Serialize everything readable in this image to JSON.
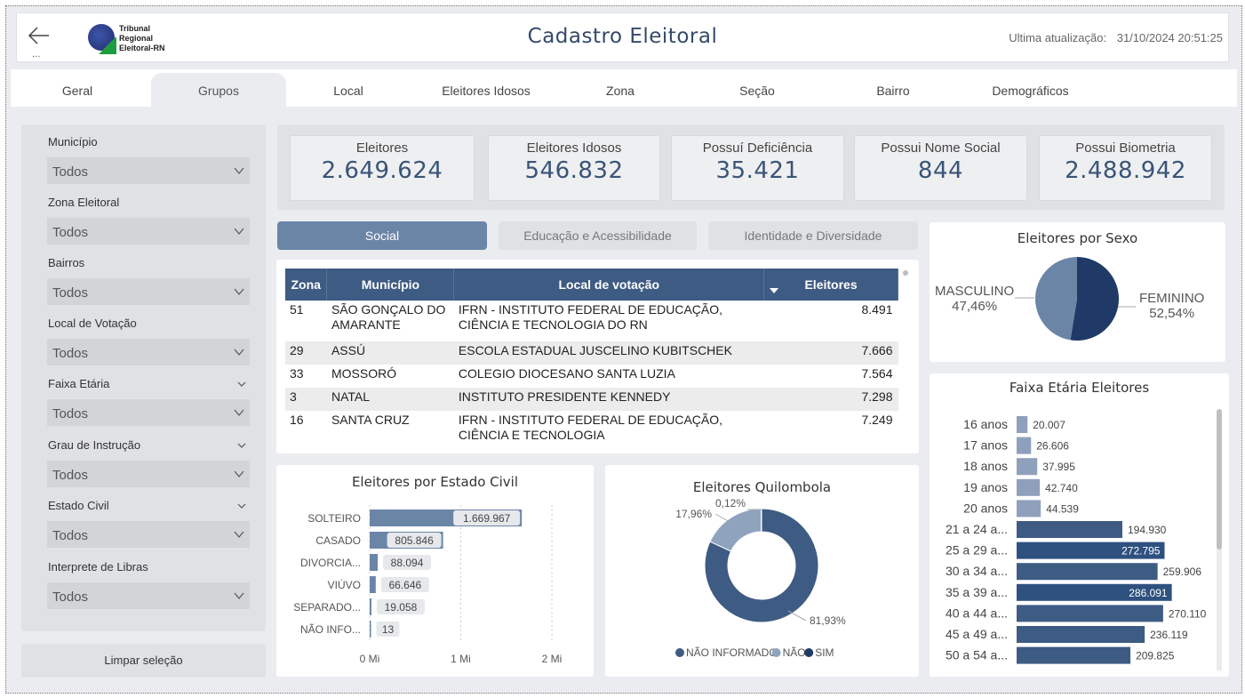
{
  "header": {
    "logo_lines": [
      "Tribunal",
      "Regional",
      "Eleitoral-RN"
    ],
    "title": "Cadastro Eleitoral",
    "update_label": "Ultima atualização:",
    "update_value": "31/10/2024 20:51:25",
    "more": "..."
  },
  "nav": {
    "tabs": [
      "Geral",
      "Grupos",
      "Local",
      "Eleitores Idosos",
      "Zona",
      "Seção",
      "Bairro",
      "Demográficos"
    ],
    "active": "Grupos"
  },
  "filters": [
    {
      "label": "Município",
      "value": "Todos"
    },
    {
      "label": "Zona Eleitoral",
      "value": "Todos"
    },
    {
      "label": "Bairros",
      "value": "Todos"
    },
    {
      "label": "Local de Votação",
      "value": "Todos"
    },
    {
      "label": "Faixa Etária",
      "value": "Todos"
    },
    {
      "label": "Grau de Instrução",
      "value": "Todos"
    },
    {
      "label": "Estado Civil",
      "value": "Todos"
    },
    {
      "label": "Interprete de Libras",
      "value": "Todos"
    }
  ],
  "clear_button": "Limpar seleção",
  "kpis": [
    {
      "label": "Eleitores",
      "value": "2.649.624"
    },
    {
      "label": "Eleitores Idosos",
      "value": "546.832"
    },
    {
      "label": "Possuí Deficiência",
      "value": "35.421"
    },
    {
      "label": "Possui Nome Social",
      "value": "844"
    },
    {
      "label": "Possui Biometria",
      "value": "2.488.942"
    }
  ],
  "segments": [
    "Social",
    "Educação e Acessibilidade",
    "Identidade e Diversidade"
  ],
  "table": {
    "headers": [
      "Zona",
      "Município",
      "Local de votação",
      "Eleitores"
    ],
    "rows": [
      [
        "51",
        "SÃO GONÇALO DO AMARANTE",
        "IFRN - INSTITUTO FEDERAL DE EDUCAÇÃO, CIÊNCIA E TECNOLOGIA DO RN",
        "8.491"
      ],
      [
        "29",
        "ASSÚ",
        "ESCOLA ESTADUAL JUSCELINO KUBITSCHEK",
        "7.666"
      ],
      [
        "33",
        "MOSSORÓ",
        "COLEGIO DIOCESANO SANTA LUZIA",
        "7.564"
      ],
      [
        "3",
        "NATAL",
        "INSTITUTO PRESIDENTE KENNEDY",
        "7.298"
      ],
      [
        "16",
        "SANTA CRUZ",
        "IFRN - INSTITUTO FEDERAL DE EDUCAÇÃO, CIÊNCIA E TECNOLOGIA",
        "7.249"
      ]
    ]
  },
  "colors": {
    "primary": "#3e5b83",
    "light": "#6b85a7",
    "dark": "#1f3a66",
    "pale": "#8fa3bf"
  },
  "chart_data": [
    {
      "type": "bar",
      "title": "Eleitores por Sexo",
      "subtype": "pie",
      "categories": [
        "MASCULINO",
        "FEMININO"
      ],
      "values": [
        47.46,
        52.54
      ],
      "value_labels": [
        "47,46%",
        "52,54%"
      ]
    },
    {
      "type": "bar",
      "title": "Eleitores por Estado Civil",
      "categories": [
        "SOLTEIRO",
        "CASADO",
        "DIVORCIA...",
        "VIÚVO",
        "SEPARADO...",
        "NÃO INFO..."
      ],
      "values": [
        1669967,
        805846,
        88094,
        66646,
        19058,
        13
      ],
      "value_labels": [
        "1.669.967",
        "805.846",
        "88.094",
        "66.646",
        "19.058",
        "13"
      ],
      "xlim": [
        0,
        2000000
      ],
      "xticks": [
        "0 Mi",
        "1 Mi",
        "2 Mi"
      ]
    },
    {
      "type": "pie",
      "title": "Eleitores Quilombola",
      "categories": [
        "NÃO INFORMADO",
        "NÃO",
        "SIM"
      ],
      "values": [
        81.93,
        17.96,
        0.12
      ],
      "value_labels": [
        "81,93%",
        "17,96%",
        "0,12%"
      ],
      "legend": [
        "NÃO INFORMADO",
        "NÃO",
        "SIM"
      ]
    },
    {
      "type": "bar",
      "title": "Faixa Etária Eleitores",
      "categories": [
        "16 anos",
        "17 anos",
        "18 anos",
        "19 anos",
        "20 anos",
        "21 a 24 a...",
        "25 a 29 a...",
        "30 a 34 a...",
        "35 a 39 a...",
        "40 a 44 a...",
        "45 a 49 a...",
        "50 a 54 a..."
      ],
      "values": [
        20007,
        26606,
        37995,
        42740,
        44539,
        194930,
        272795,
        259906,
        286091,
        270110,
        236119,
        209825
      ],
      "value_labels": [
        "20.007",
        "26.606",
        "37.995",
        "42.740",
        "44.539",
        "194.930",
        "272.795",
        "259.906",
        "286.091",
        "270.110",
        "236.119",
        "209.825"
      ]
    }
  ]
}
